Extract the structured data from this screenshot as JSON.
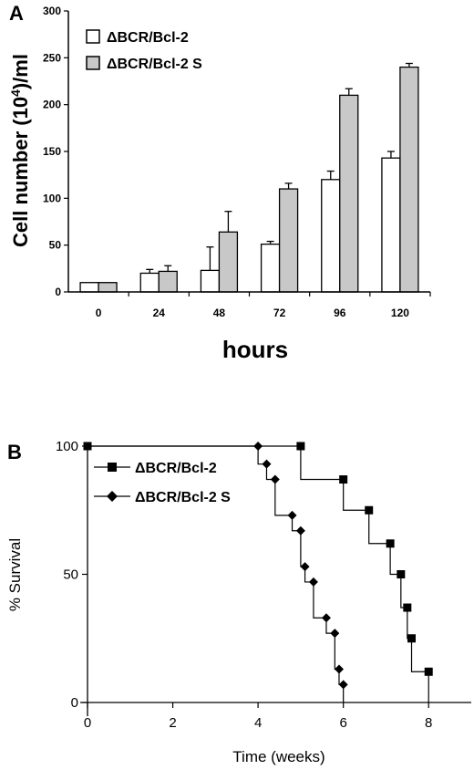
{
  "chart_data": [
    {
      "panel_label": "A",
      "type": "bar",
      "categories": [
        "0",
        "24",
        "48",
        "72",
        "96",
        "120"
      ],
      "series": [
        {
          "name": "ΔBCR/Bcl-2",
          "values": [
            10,
            20,
            23,
            51,
            120,
            143
          ],
          "errors": [
            0,
            4,
            25,
            3,
            9,
            7
          ],
          "color": "#ffffff"
        },
        {
          "name": "ΔBCR/Bcl-2 S",
          "values": [
            10,
            22,
            64,
            110,
            210,
            240
          ],
          "errors": [
            0,
            6,
            22,
            6,
            7,
            4
          ],
          "color": "#c8c8c8"
        }
      ],
      "title": "",
      "xlabel": "hours",
      "ylabel": "Cell number (10",
      "ylabel_superscript": "4",
      "ylabel_suffix": ")/ml",
      "ylim": [
        0,
        300
      ],
      "yticks": [
        "0",
        "50",
        "100",
        "150",
        "200",
        "250",
        "300"
      ],
      "error_bars": true,
      "grid": false,
      "legend": "top-left"
    },
    {
      "panel_label": "B",
      "type": "line",
      "step": true,
      "series": [
        {
          "name": "ΔBCR/Bcl-2",
          "marker": "square",
          "x": [
            0,
            5,
            6,
            6.6,
            7.1,
            7.35,
            7.5,
            7.6,
            8
          ],
          "y": [
            100,
            87,
            75,
            62,
            50,
            37,
            25,
            12,
            0
          ]
        },
        {
          "name": "ΔBCR/Bcl-2 S",
          "marker": "diamond",
          "x": [
            0,
            4,
            4.2,
            4.4,
            4.8,
            5,
            5.1,
            5.3,
            5.6,
            5.8,
            5.9,
            6
          ],
          "y": [
            100,
            93,
            87,
            73,
            67,
            53,
            47,
            33,
            27,
            13,
            7,
            0
          ]
        }
      ],
      "title": "",
      "xlabel": "Time (weeks)",
      "ylabel": "% Survival",
      "xlim": [
        0,
        9
      ],
      "ylim": [
        0,
        100
      ],
      "xticks": [
        "0",
        "2",
        "4",
        "6",
        "8"
      ],
      "yticks": [
        "0",
        "50",
        "100"
      ],
      "grid": false,
      "legend": "top-left"
    }
  ]
}
